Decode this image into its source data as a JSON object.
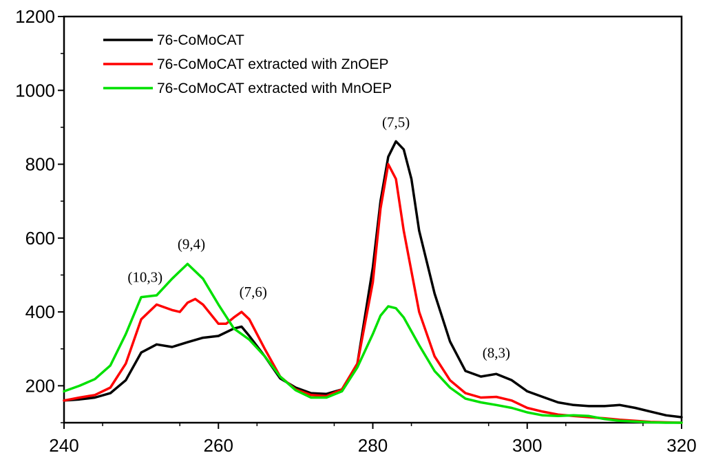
{
  "chart_data": {
    "type": "line",
    "title": "",
    "xlabel": "",
    "ylabel": "",
    "xlim": [
      240,
      320
    ],
    "ylim": [
      100,
      1200
    ],
    "xticks": [
      240,
      260,
      280,
      300,
      320
    ],
    "yticks": [
      200,
      400,
      600,
      800,
      1000,
      1200
    ],
    "grid": false,
    "legend_position": "top-left",
    "series": [
      {
        "name": "76-CoMoCAT",
        "color": "#000000",
        "points": [
          [
            240,
            160
          ],
          [
            242,
            163
          ],
          [
            244,
            168
          ],
          [
            246,
            180
          ],
          [
            248,
            215
          ],
          [
            250,
            290
          ],
          [
            252,
            312
          ],
          [
            254,
            305
          ],
          [
            256,
            318
          ],
          [
            258,
            330
          ],
          [
            260,
            335
          ],
          [
            262,
            355
          ],
          [
            263,
            360
          ],
          [
            264,
            335
          ],
          [
            266,
            280
          ],
          [
            268,
            220
          ],
          [
            270,
            195
          ],
          [
            272,
            180
          ],
          [
            274,
            178
          ],
          [
            276,
            190
          ],
          [
            278,
            260
          ],
          [
            280,
            520
          ],
          [
            281,
            700
          ],
          [
            282,
            820
          ],
          [
            283,
            862
          ],
          [
            284,
            840
          ],
          [
            285,
            760
          ],
          [
            286,
            620
          ],
          [
            288,
            450
          ],
          [
            290,
            320
          ],
          [
            292,
            240
          ],
          [
            294,
            225
          ],
          [
            296,
            232
          ],
          [
            298,
            215
          ],
          [
            300,
            185
          ],
          [
            302,
            170
          ],
          [
            304,
            155
          ],
          [
            306,
            148
          ],
          [
            308,
            145
          ],
          [
            310,
            145
          ],
          [
            312,
            148
          ],
          [
            314,
            140
          ],
          [
            316,
            130
          ],
          [
            318,
            120
          ],
          [
            320,
            115
          ]
        ]
      },
      {
        "name": "76-CoMoCAT extracted with ZnOEP",
        "color": "#ff0000",
        "points": [
          [
            240,
            160
          ],
          [
            242,
            168
          ],
          [
            244,
            175
          ],
          [
            246,
            195
          ],
          [
            248,
            260
          ],
          [
            250,
            380
          ],
          [
            252,
            420
          ],
          [
            254,
            405
          ],
          [
            255,
            400
          ],
          [
            256,
            425
          ],
          [
            257,
            435
          ],
          [
            258,
            420
          ],
          [
            260,
            368
          ],
          [
            261,
            368
          ],
          [
            262,
            385
          ],
          [
            263,
            400
          ],
          [
            264,
            380
          ],
          [
            266,
            300
          ],
          [
            268,
            225
          ],
          [
            270,
            190
          ],
          [
            272,
            175
          ],
          [
            274,
            172
          ],
          [
            276,
            190
          ],
          [
            278,
            260
          ],
          [
            280,
            480
          ],
          [
            281,
            680
          ],
          [
            282,
            800
          ],
          [
            283,
            760
          ],
          [
            284,
            620
          ],
          [
            286,
            400
          ],
          [
            288,
            280
          ],
          [
            290,
            215
          ],
          [
            292,
            180
          ],
          [
            294,
            168
          ],
          [
            296,
            170
          ],
          [
            298,
            160
          ],
          [
            300,
            140
          ],
          [
            302,
            130
          ],
          [
            304,
            122
          ],
          [
            306,
            118
          ],
          [
            308,
            115
          ],
          [
            310,
            112
          ],
          [
            312,
            108
          ],
          [
            314,
            105
          ],
          [
            316,
            102
          ],
          [
            318,
            101
          ],
          [
            320,
            100
          ]
        ]
      },
      {
        "name": "76-CoMoCAT extracted with MnOEP",
        "color": "#00e000",
        "points": [
          [
            240,
            185
          ],
          [
            242,
            200
          ],
          [
            244,
            218
          ],
          [
            246,
            255
          ],
          [
            248,
            340
          ],
          [
            250,
            440
          ],
          [
            252,
            445
          ],
          [
            254,
            490
          ],
          [
            256,
            530
          ],
          [
            258,
            490
          ],
          [
            260,
            420
          ],
          [
            262,
            355
          ],
          [
            264,
            325
          ],
          [
            266,
            280
          ],
          [
            268,
            225
          ],
          [
            270,
            188
          ],
          [
            272,
            168
          ],
          [
            274,
            168
          ],
          [
            276,
            185
          ],
          [
            278,
            250
          ],
          [
            280,
            340
          ],
          [
            281,
            390
          ],
          [
            282,
            415
          ],
          [
            283,
            410
          ],
          [
            284,
            385
          ],
          [
            286,
            310
          ],
          [
            288,
            240
          ],
          [
            290,
            195
          ],
          [
            292,
            165
          ],
          [
            294,
            155
          ],
          [
            296,
            148
          ],
          [
            298,
            140
          ],
          [
            300,
            128
          ],
          [
            302,
            120
          ],
          [
            304,
            118
          ],
          [
            306,
            120
          ],
          [
            308,
            118
          ],
          [
            310,
            110
          ],
          [
            312,
            105
          ],
          [
            314,
            103
          ],
          [
            316,
            101
          ],
          [
            318,
            100
          ],
          [
            320,
            100
          ]
        ]
      }
    ],
    "annotations": [
      {
        "text": "(10,3)",
        "x": 250.5,
        "y": 440
      },
      {
        "text": "(9,4)",
        "x": 256.5,
        "y": 530
      },
      {
        "text": "(7,6)",
        "x": 264.5,
        "y": 400
      },
      {
        "text": "(7,5)",
        "x": 283.0,
        "y": 860
      },
      {
        "text": "(8,3)",
        "x": 296.0,
        "y": 235
      }
    ]
  }
}
